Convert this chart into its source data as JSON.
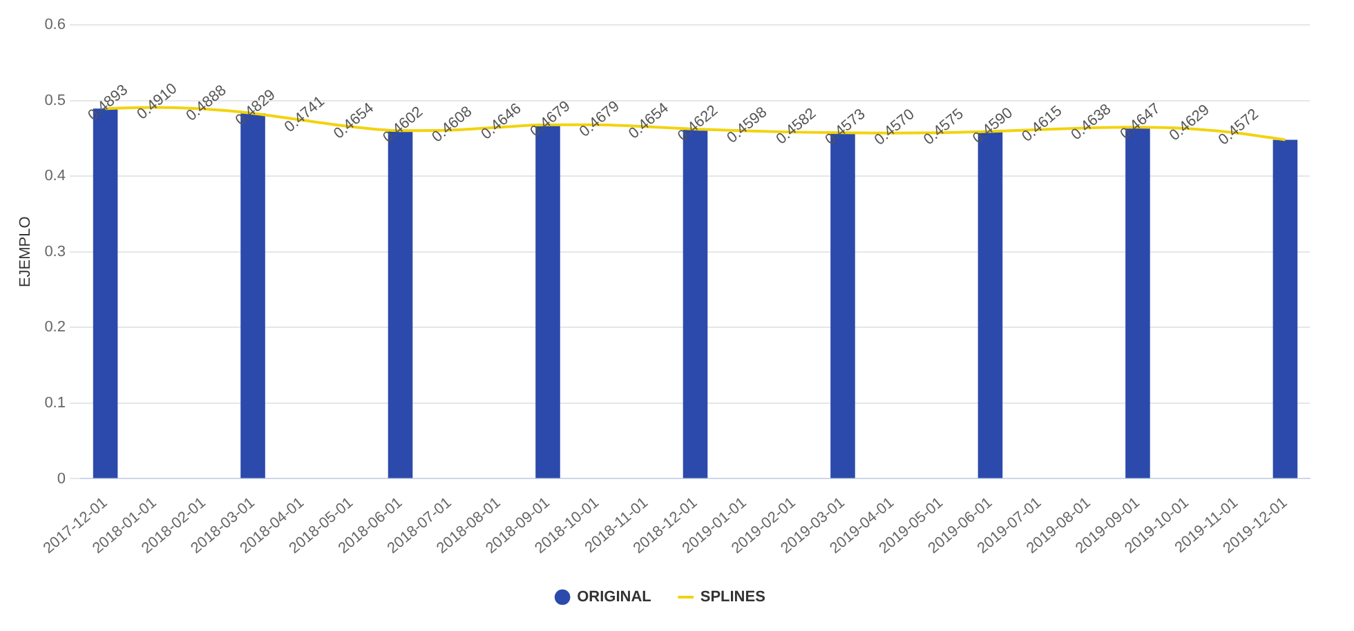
{
  "chart_data": {
    "type": "bar",
    "ylabel": "EJEMPLO",
    "categories": [
      "2017-12-01",
      "2018-01-01",
      "2018-02-01",
      "2018-03-01",
      "2018-04-01",
      "2018-05-01",
      "2018-06-01",
      "2018-07-01",
      "2018-08-01",
      "2018-09-01",
      "2018-10-01",
      "2018-11-01",
      "2018-12-01",
      "2019-01-01",
      "2019-02-01",
      "2019-03-01",
      "2019-04-01",
      "2019-05-01",
      "2019-06-01",
      "2019-07-01",
      "2019-08-01",
      "2019-09-01",
      "2019-10-01",
      "2019-11-01",
      "2019-12-01"
    ],
    "series": [
      {
        "name": "ORIGINAL",
        "color": "#2b4aab",
        "values": [
          0.4893,
          null,
          null,
          0.4829,
          null,
          null,
          0.4602,
          null,
          null,
          0.4679,
          null,
          null,
          0.4622,
          null,
          null,
          0.4573,
          null,
          null,
          0.459,
          null,
          null,
          0.4647,
          null,
          null,
          0.448
        ]
      },
      {
        "name": "SPLINES",
        "type": "line",
        "color": "#f2d30e",
        "values": [
          0.4893,
          0.491,
          0.4888,
          0.4829,
          0.4741,
          0.4654,
          0.4602,
          0.4608,
          0.4646,
          0.4679,
          0.4679,
          0.4654,
          0.4622,
          0.4598,
          0.4582,
          0.4573,
          0.457,
          0.4575,
          0.459,
          0.4615,
          0.4638,
          0.4647,
          0.4629,
          0.4572,
          0.448
        ],
        "value_labels": [
          "0.4893",
          "0.4910",
          "0.4888",
          "0.4829",
          "0.4741",
          "0.4654",
          "0.4602",
          "0.4608",
          "0.4646",
          "0.4679",
          "0.4679",
          "0.4654",
          "0.4622",
          "0.4598",
          "0.4582",
          "0.4573",
          "0.4570",
          "0.4575",
          "0.4590",
          "0.4615",
          "0.4638",
          "0.4647",
          "0.4629",
          "0.4572",
          null
        ]
      }
    ],
    "ylim": [
      0,
      0.6
    ],
    "yticks": [
      0,
      0.1,
      0.2,
      0.3,
      0.4,
      0.5,
      0.6
    ],
    "grid": "y",
    "legend": "bottom",
    "marker": "none"
  }
}
